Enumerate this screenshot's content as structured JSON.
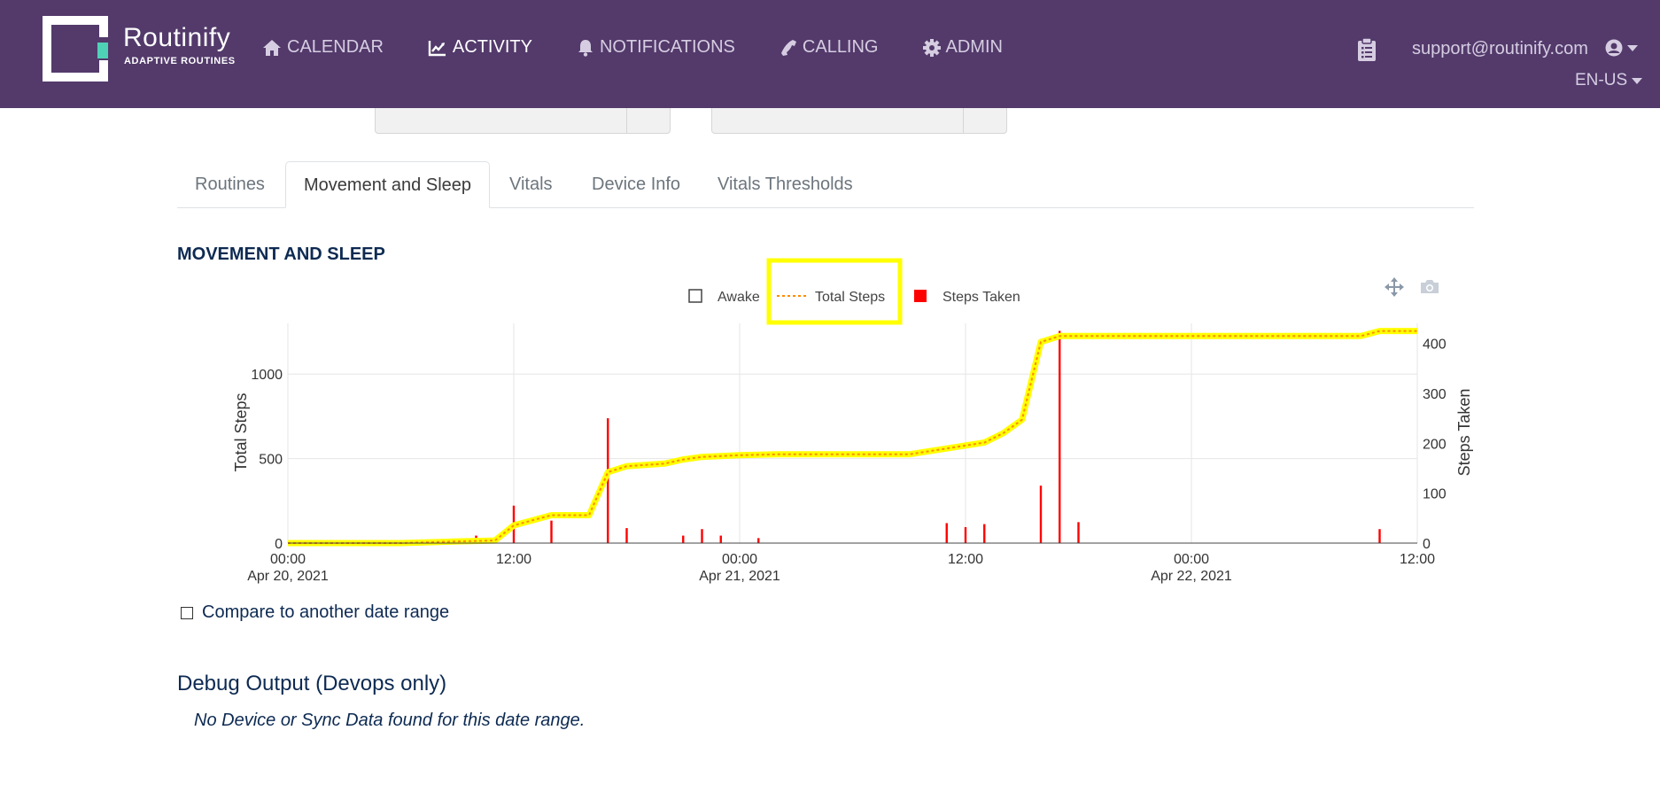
{
  "brand": {
    "name": "Routinify",
    "tagline": "ADAPTIVE ROUTINES"
  },
  "nav": {
    "items": [
      {
        "label": "CALENDAR",
        "icon": "home-icon",
        "active": false
      },
      {
        "label": "ACTIVITY",
        "icon": "line-chart-icon",
        "active": true
      },
      {
        "label": "NOTIFICATIONS",
        "icon": "bell-icon",
        "active": false
      },
      {
        "label": "CALLING",
        "icon": "phone-icon",
        "active": false
      },
      {
        "label": "ADMIN",
        "icon": "gear-icon",
        "active": false
      }
    ],
    "user_email": "support@routinify.com",
    "language": "EN-US"
  },
  "tabs": [
    {
      "label": "Routines",
      "active": false
    },
    {
      "label": "Movement and Sleep",
      "active": true
    },
    {
      "label": "Vitals",
      "active": false
    },
    {
      "label": "Device Info",
      "active": false
    },
    {
      "label": "Vitals Thresholds",
      "active": false
    }
  ],
  "section_title": "MOVEMENT AND SLEEP",
  "chart_data": {
    "type": "line",
    "legend": {
      "placement": "top-center",
      "entries": [
        {
          "name": "Awake",
          "symbol": "empty-square"
        },
        {
          "name": "Total Steps",
          "symbol": "dashed-line",
          "highlighted": true
        },
        {
          "name": "Steps Taken",
          "symbol": "filled-square"
        }
      ]
    },
    "y_left": {
      "label": "Total Steps",
      "range": [
        0,
        1300
      ],
      "ticks": [
        0,
        500,
        1000
      ]
    },
    "y_right": {
      "label": "Steps Taken",
      "range": [
        0,
        440
      ],
      "ticks": [
        0,
        100,
        200,
        300,
        400
      ]
    },
    "x_axis": {
      "range": [
        "2021-04-20T00:00",
        "2021-04-22T12:00"
      ],
      "ticks": [
        {
          "at": "2021-04-20T00:00",
          "time": "00:00",
          "date": "Apr 20, 2021"
        },
        {
          "at": "2021-04-20T12:00",
          "time": "12:00",
          "date": ""
        },
        {
          "at": "2021-04-21T00:00",
          "time": "00:00",
          "date": "Apr 21, 2021"
        },
        {
          "at": "2021-04-21T12:00",
          "time": "12:00",
          "date": ""
        },
        {
          "at": "2021-04-22T00:00",
          "time": "00:00",
          "date": "Apr 22, 2021"
        },
        {
          "at": "2021-04-22T12:00",
          "time": "12:00",
          "date": ""
        }
      ]
    },
    "grid": true,
    "series": [
      {
        "name": "Total Steps",
        "axis": "left",
        "color": "#ffff00",
        "dash_color": "#ff8c00",
        "points": [
          [
            "2021-04-20T00:00",
            0
          ],
          [
            "2021-04-20T06:00",
            0
          ],
          [
            "2021-04-20T09:00",
            10
          ],
          [
            "2021-04-20T11:00",
            15
          ],
          [
            "2021-04-20T12:00",
            105
          ],
          [
            "2021-04-20T13:00",
            135
          ],
          [
            "2021-04-20T14:00",
            165
          ],
          [
            "2021-04-20T16:00",
            165
          ],
          [
            "2021-04-20T17:00",
            420
          ],
          [
            "2021-04-20T18:00",
            455
          ],
          [
            "2021-04-20T20:00",
            470
          ],
          [
            "2021-04-20T21:00",
            495
          ],
          [
            "2021-04-20T22:00",
            510
          ],
          [
            "2021-04-21T00:00",
            520
          ],
          [
            "2021-04-21T02:00",
            525
          ],
          [
            "2021-04-21T09:00",
            525
          ],
          [
            "2021-04-21T11:00",
            560
          ],
          [
            "2021-04-21T13:00",
            595
          ],
          [
            "2021-04-21T14:00",
            650
          ],
          [
            "2021-04-21T15:00",
            730
          ],
          [
            "2021-04-21T16:00",
            1190
          ],
          [
            "2021-04-21T17:00",
            1225
          ],
          [
            "2021-04-22T09:00",
            1225
          ],
          [
            "2021-04-22T10:00",
            1255
          ],
          [
            "2021-04-22T12:00",
            1255
          ]
        ]
      },
      {
        "name": "Steps Taken",
        "axis": "right",
        "color": "#ff0000",
        "type": "bar",
        "points": [
          [
            "2021-04-20T10:00",
            15
          ],
          [
            "2021-04-20T12:00",
            75
          ],
          [
            "2021-04-20T14:00",
            45
          ],
          [
            "2021-04-20T17:00",
            250
          ],
          [
            "2021-04-20T18:00",
            30
          ],
          [
            "2021-04-20T21:00",
            15
          ],
          [
            "2021-04-20T22:00",
            28
          ],
          [
            "2021-04-20T23:00",
            15
          ],
          [
            "2021-04-21T01:00",
            10
          ],
          [
            "2021-04-21T11:00",
            40
          ],
          [
            "2021-04-21T12:00",
            32
          ],
          [
            "2021-04-21T13:00",
            38
          ],
          [
            "2021-04-21T16:00",
            115
          ],
          [
            "2021-04-21T17:00",
            425
          ],
          [
            "2021-04-21T18:00",
            42
          ],
          [
            "2021-04-22T10:00",
            28
          ]
        ]
      }
    ]
  },
  "compare_label": "Compare to another date range",
  "debug": {
    "title": "Debug Output (Devops only)",
    "message": "No Device or Sync Data found for this date range."
  },
  "colors": {
    "header_bg": "#533a6b",
    "accent_teal": "#4fd1b6",
    "highlight_box": "#ffff00",
    "heading_text": "#0d2a52"
  }
}
